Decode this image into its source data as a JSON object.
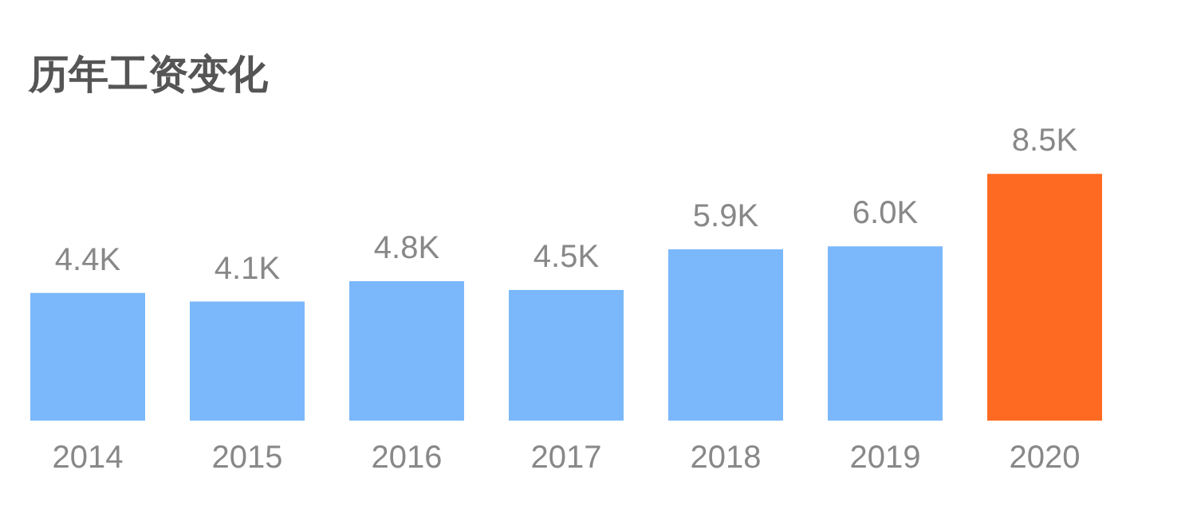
{
  "chart_data": {
    "type": "bar",
    "title": "历年工资变化",
    "categories": [
      "2014",
      "2015",
      "2016",
      "2017",
      "2018",
      "2019",
      "2020"
    ],
    "values": [
      4.4,
      4.1,
      4.8,
      4.5,
      5.9,
      6.0,
      8.5
    ],
    "value_labels": [
      "4.4K",
      "4.1K",
      "4.8K",
      "4.5K",
      "5.9K",
      "6.0K",
      "8.5K"
    ],
    "colors": [
      "#7ab8fb",
      "#7ab8fb",
      "#7ab8fb",
      "#7ab8fb",
      "#7ab8fb",
      "#7ab8fb",
      "#ff6a22"
    ],
    "grid": false,
    "legend": false
  }
}
